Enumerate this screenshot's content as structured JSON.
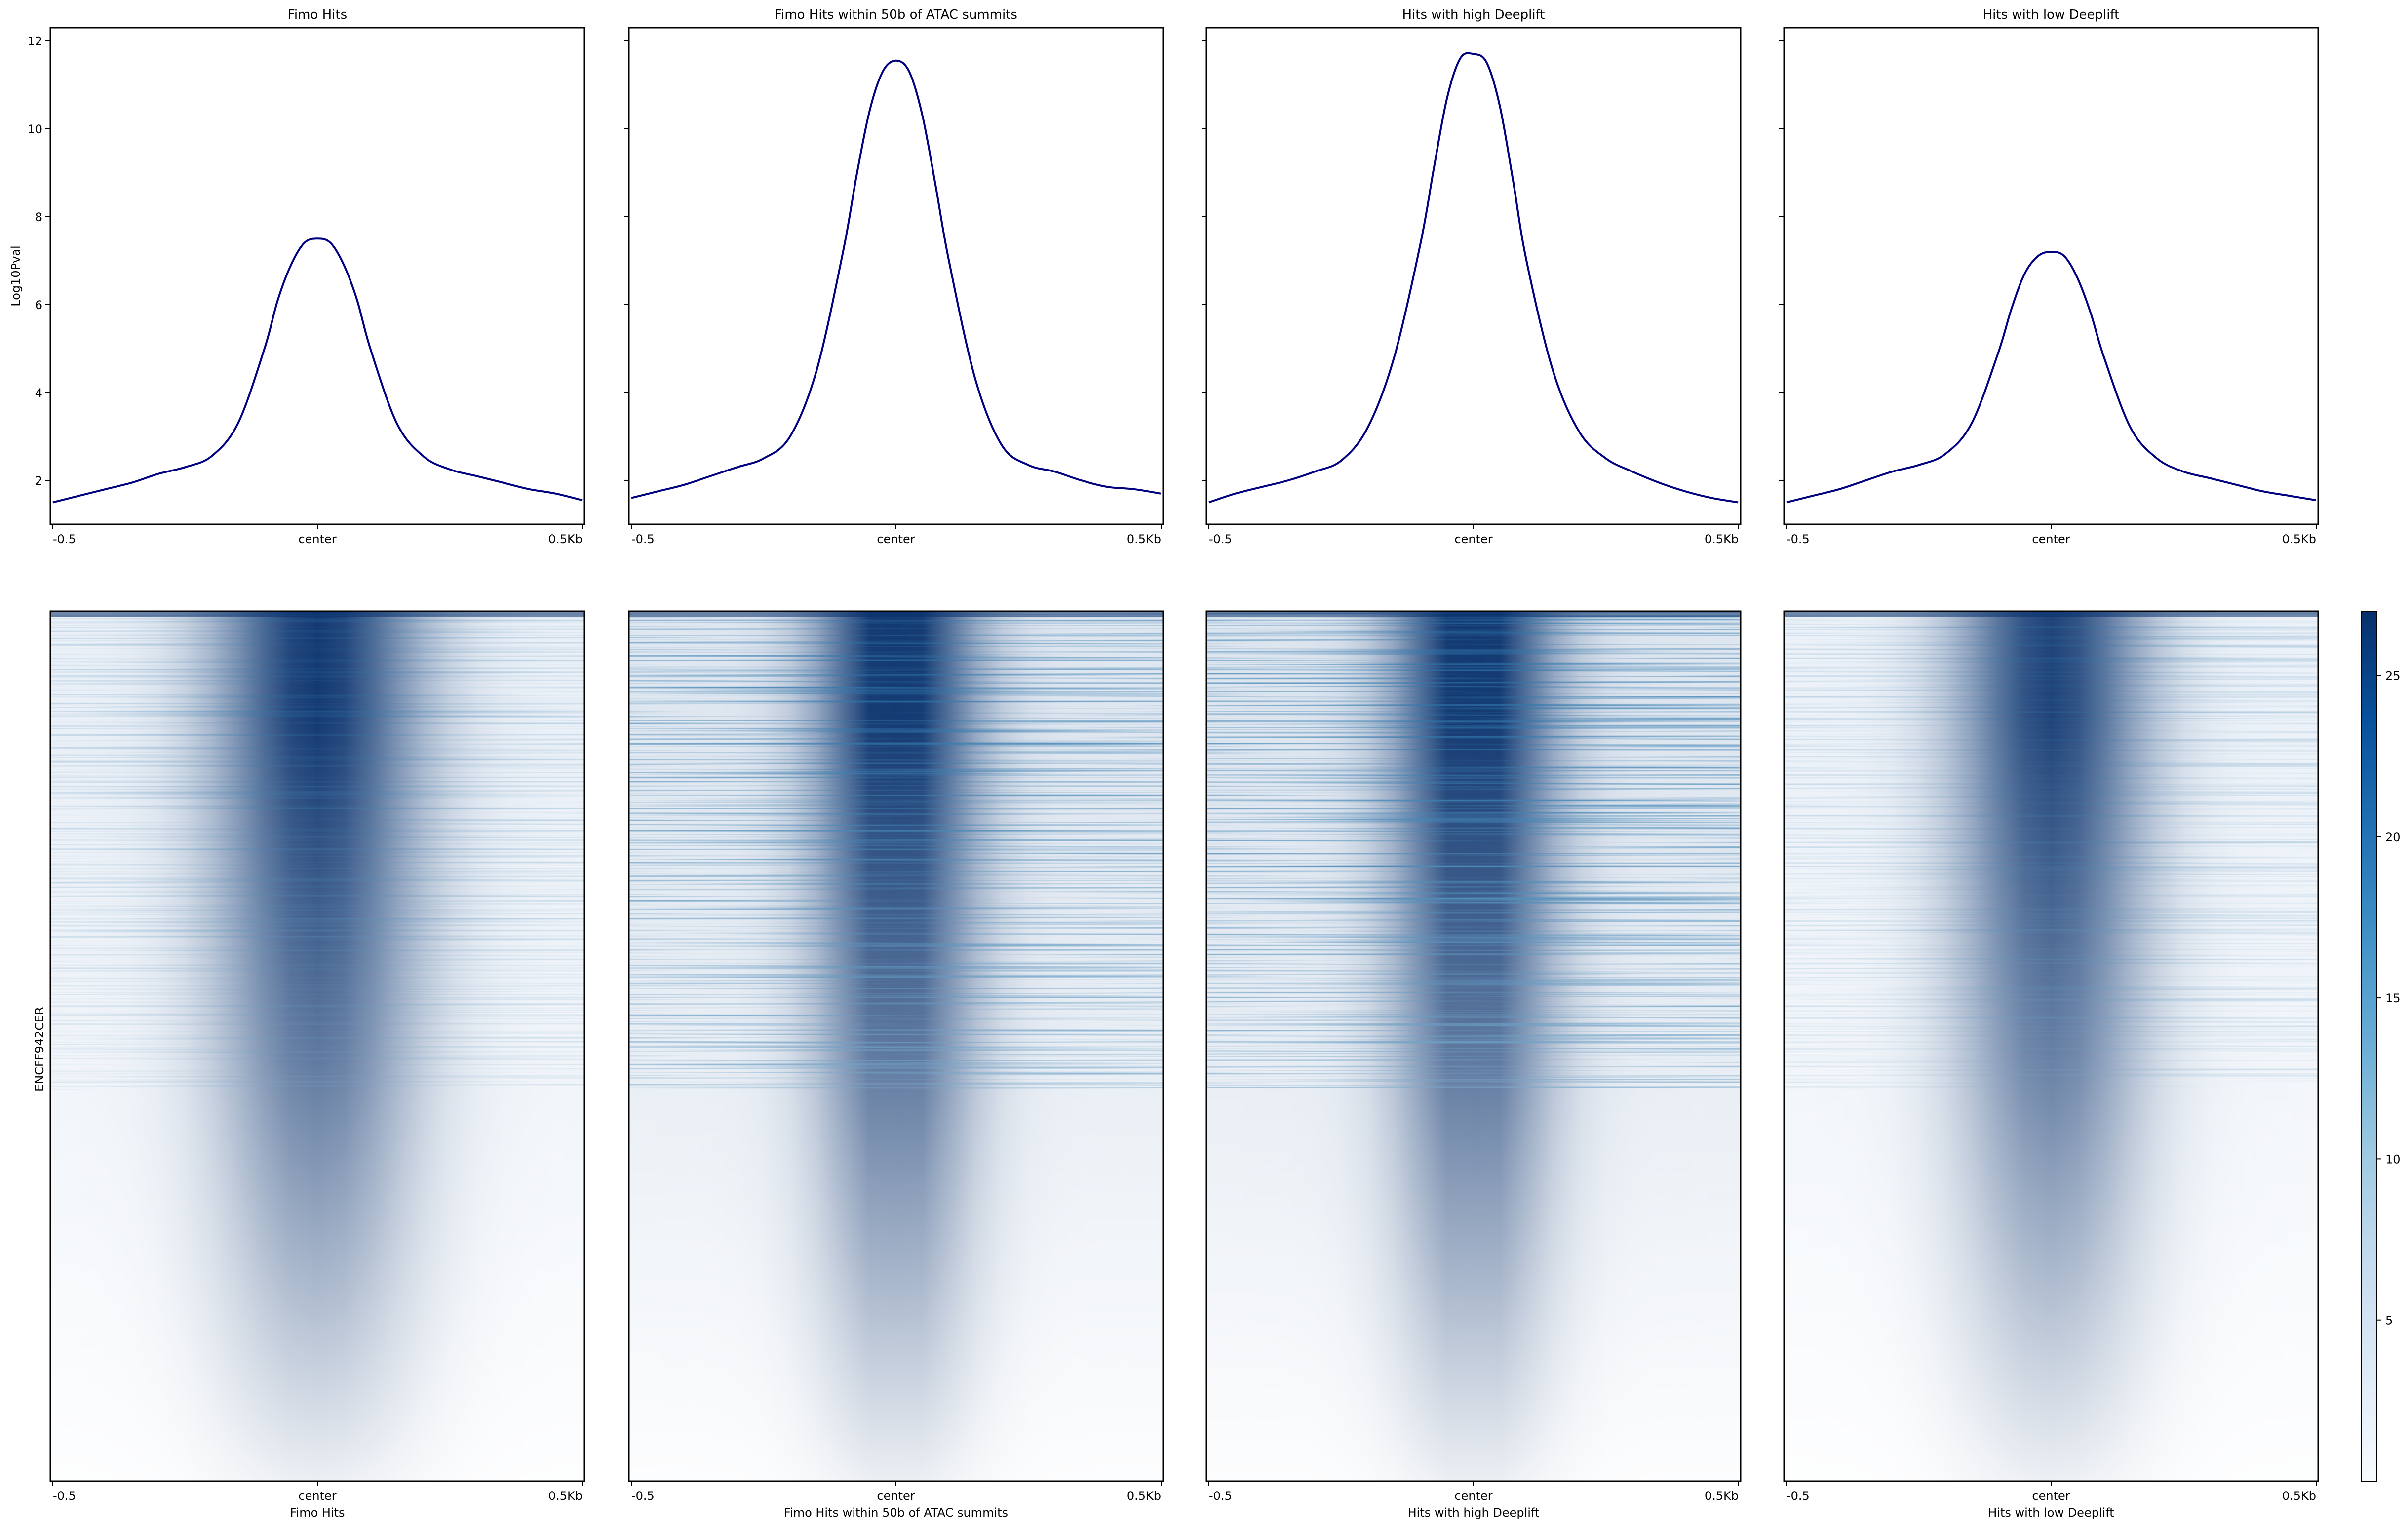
{
  "chart_data": [
    {
      "type": "line",
      "title": "Fimo Hits",
      "ylabel": "Log10Pval",
      "xlabel": "",
      "x_tick_labels": [
        "-0.5",
        "center",
        "0.5Kb"
      ],
      "y_ticks": [
        2,
        4,
        6,
        8,
        10,
        12
      ],
      "ylim": [
        1.0,
        12.3
      ],
      "xlim": [
        -500,
        500
      ],
      "x": [
        -500,
        -450,
        -400,
        -350,
        -300,
        -250,
        -200,
        -150,
        -100,
        -75,
        -50,
        -25,
        0,
        25,
        50,
        75,
        100,
        150,
        200,
        250,
        300,
        350,
        400,
        450,
        500
      ],
      "y": [
        1.5,
        1.65,
        1.8,
        1.95,
        2.15,
        2.3,
        2.55,
        3.3,
        5.0,
        6.1,
        6.9,
        7.4,
        7.5,
        7.4,
        6.9,
        6.1,
        5.0,
        3.3,
        2.55,
        2.25,
        2.1,
        1.95,
        1.8,
        1.7,
        1.55
      ]
    },
    {
      "type": "line",
      "title": "Fimo Hits within 50b of ATAC summits",
      "ylabel": "",
      "xlabel": "",
      "x_tick_labels": [
        "-0.5",
        "center",
        "0.5Kb"
      ],
      "ylim": [
        1.0,
        12.3
      ],
      "xlim": [
        -500,
        500
      ],
      "x": [
        -500,
        -450,
        -400,
        -350,
        -300,
        -250,
        -200,
        -150,
        -100,
        -75,
        -50,
        -25,
        0,
        25,
        50,
        75,
        100,
        150,
        200,
        250,
        300,
        350,
        400,
        450,
        500
      ],
      "y": [
        1.6,
        1.75,
        1.9,
        2.1,
        2.3,
        2.5,
        3.0,
        4.5,
        7.2,
        8.9,
        10.4,
        11.3,
        11.55,
        11.3,
        10.3,
        8.7,
        7.0,
        4.3,
        2.8,
        2.35,
        2.2,
        2.0,
        1.85,
        1.8,
        1.7
      ]
    },
    {
      "type": "line",
      "title": "Hits with high Deeplift",
      "ylabel": "",
      "xlabel": "",
      "x_tick_labels": [
        "-0.5",
        "center",
        "0.5Kb"
      ],
      "ylim": [
        1.0,
        12.3
      ],
      "xlim": [
        -500,
        500
      ],
      "x": [
        -500,
        -450,
        -400,
        -350,
        -300,
        -250,
        -200,
        -150,
        -100,
        -75,
        -50,
        -25,
        0,
        25,
        50,
        75,
        100,
        150,
        200,
        250,
        300,
        350,
        400,
        450,
        500
      ],
      "y": [
        1.5,
        1.7,
        1.85,
        2.0,
        2.2,
        2.45,
        3.2,
        4.8,
        7.4,
        9.1,
        10.7,
        11.6,
        11.7,
        11.5,
        10.5,
        8.8,
        7.0,
        4.5,
        3.1,
        2.5,
        2.2,
        1.95,
        1.75,
        1.6,
        1.5
      ]
    },
    {
      "type": "line",
      "title": "Hits with low Deeplift",
      "ylabel": "",
      "xlabel": "",
      "x_tick_labels": [
        "-0.5",
        "center",
        "0.5Kb"
      ],
      "ylim": [
        1.0,
        12.3
      ],
      "xlim": [
        -500,
        500
      ],
      "x": [
        -500,
        -450,
        -400,
        -350,
        -300,
        -250,
        -200,
        -150,
        -100,
        -75,
        -50,
        -25,
        0,
        25,
        50,
        75,
        100,
        150,
        200,
        250,
        300,
        350,
        400,
        450,
        500
      ],
      "y": [
        1.5,
        1.65,
        1.8,
        2.0,
        2.2,
        2.35,
        2.6,
        3.3,
        4.9,
        5.9,
        6.7,
        7.1,
        7.2,
        7.1,
        6.6,
        5.8,
        4.8,
        3.2,
        2.5,
        2.2,
        2.05,
        1.9,
        1.75,
        1.65,
        1.55
      ]
    },
    {
      "type": "heatmap",
      "title": "",
      "ylabel": "ENCFF942CER",
      "xlabel": "Fimo Hits",
      "x_tick_labels": [
        "-0.5",
        "center",
        "0.5Kb"
      ]
    },
    {
      "type": "heatmap",
      "title": "",
      "ylabel": "",
      "xlabel": "Fimo Hits within 50b of ATAC summits",
      "x_tick_labels": [
        "-0.5",
        "center",
        "0.5Kb"
      ]
    },
    {
      "type": "heatmap",
      "title": "",
      "ylabel": "",
      "xlabel": "Hits with high Deeplift",
      "x_tick_labels": [
        "-0.5",
        "center",
        "0.5Kb"
      ]
    },
    {
      "type": "heatmap",
      "title": "",
      "ylabel": "",
      "xlabel": "Hits with low Deeplift",
      "x_tick_labels": [
        "-0.5",
        "center",
        "0.5Kb"
      ]
    }
  ],
  "colorbar": {
    "ticks": [
      5,
      10,
      15,
      20,
      25
    ],
    "range": [
      0,
      27
    ],
    "colors": [
      "#f7fbff",
      "#deebf7",
      "#c6dbef",
      "#9ecae1",
      "#6baed6",
      "#4292c6",
      "#2171b5",
      "#08519c",
      "#08306b"
    ]
  },
  "line_color": "#000080"
}
